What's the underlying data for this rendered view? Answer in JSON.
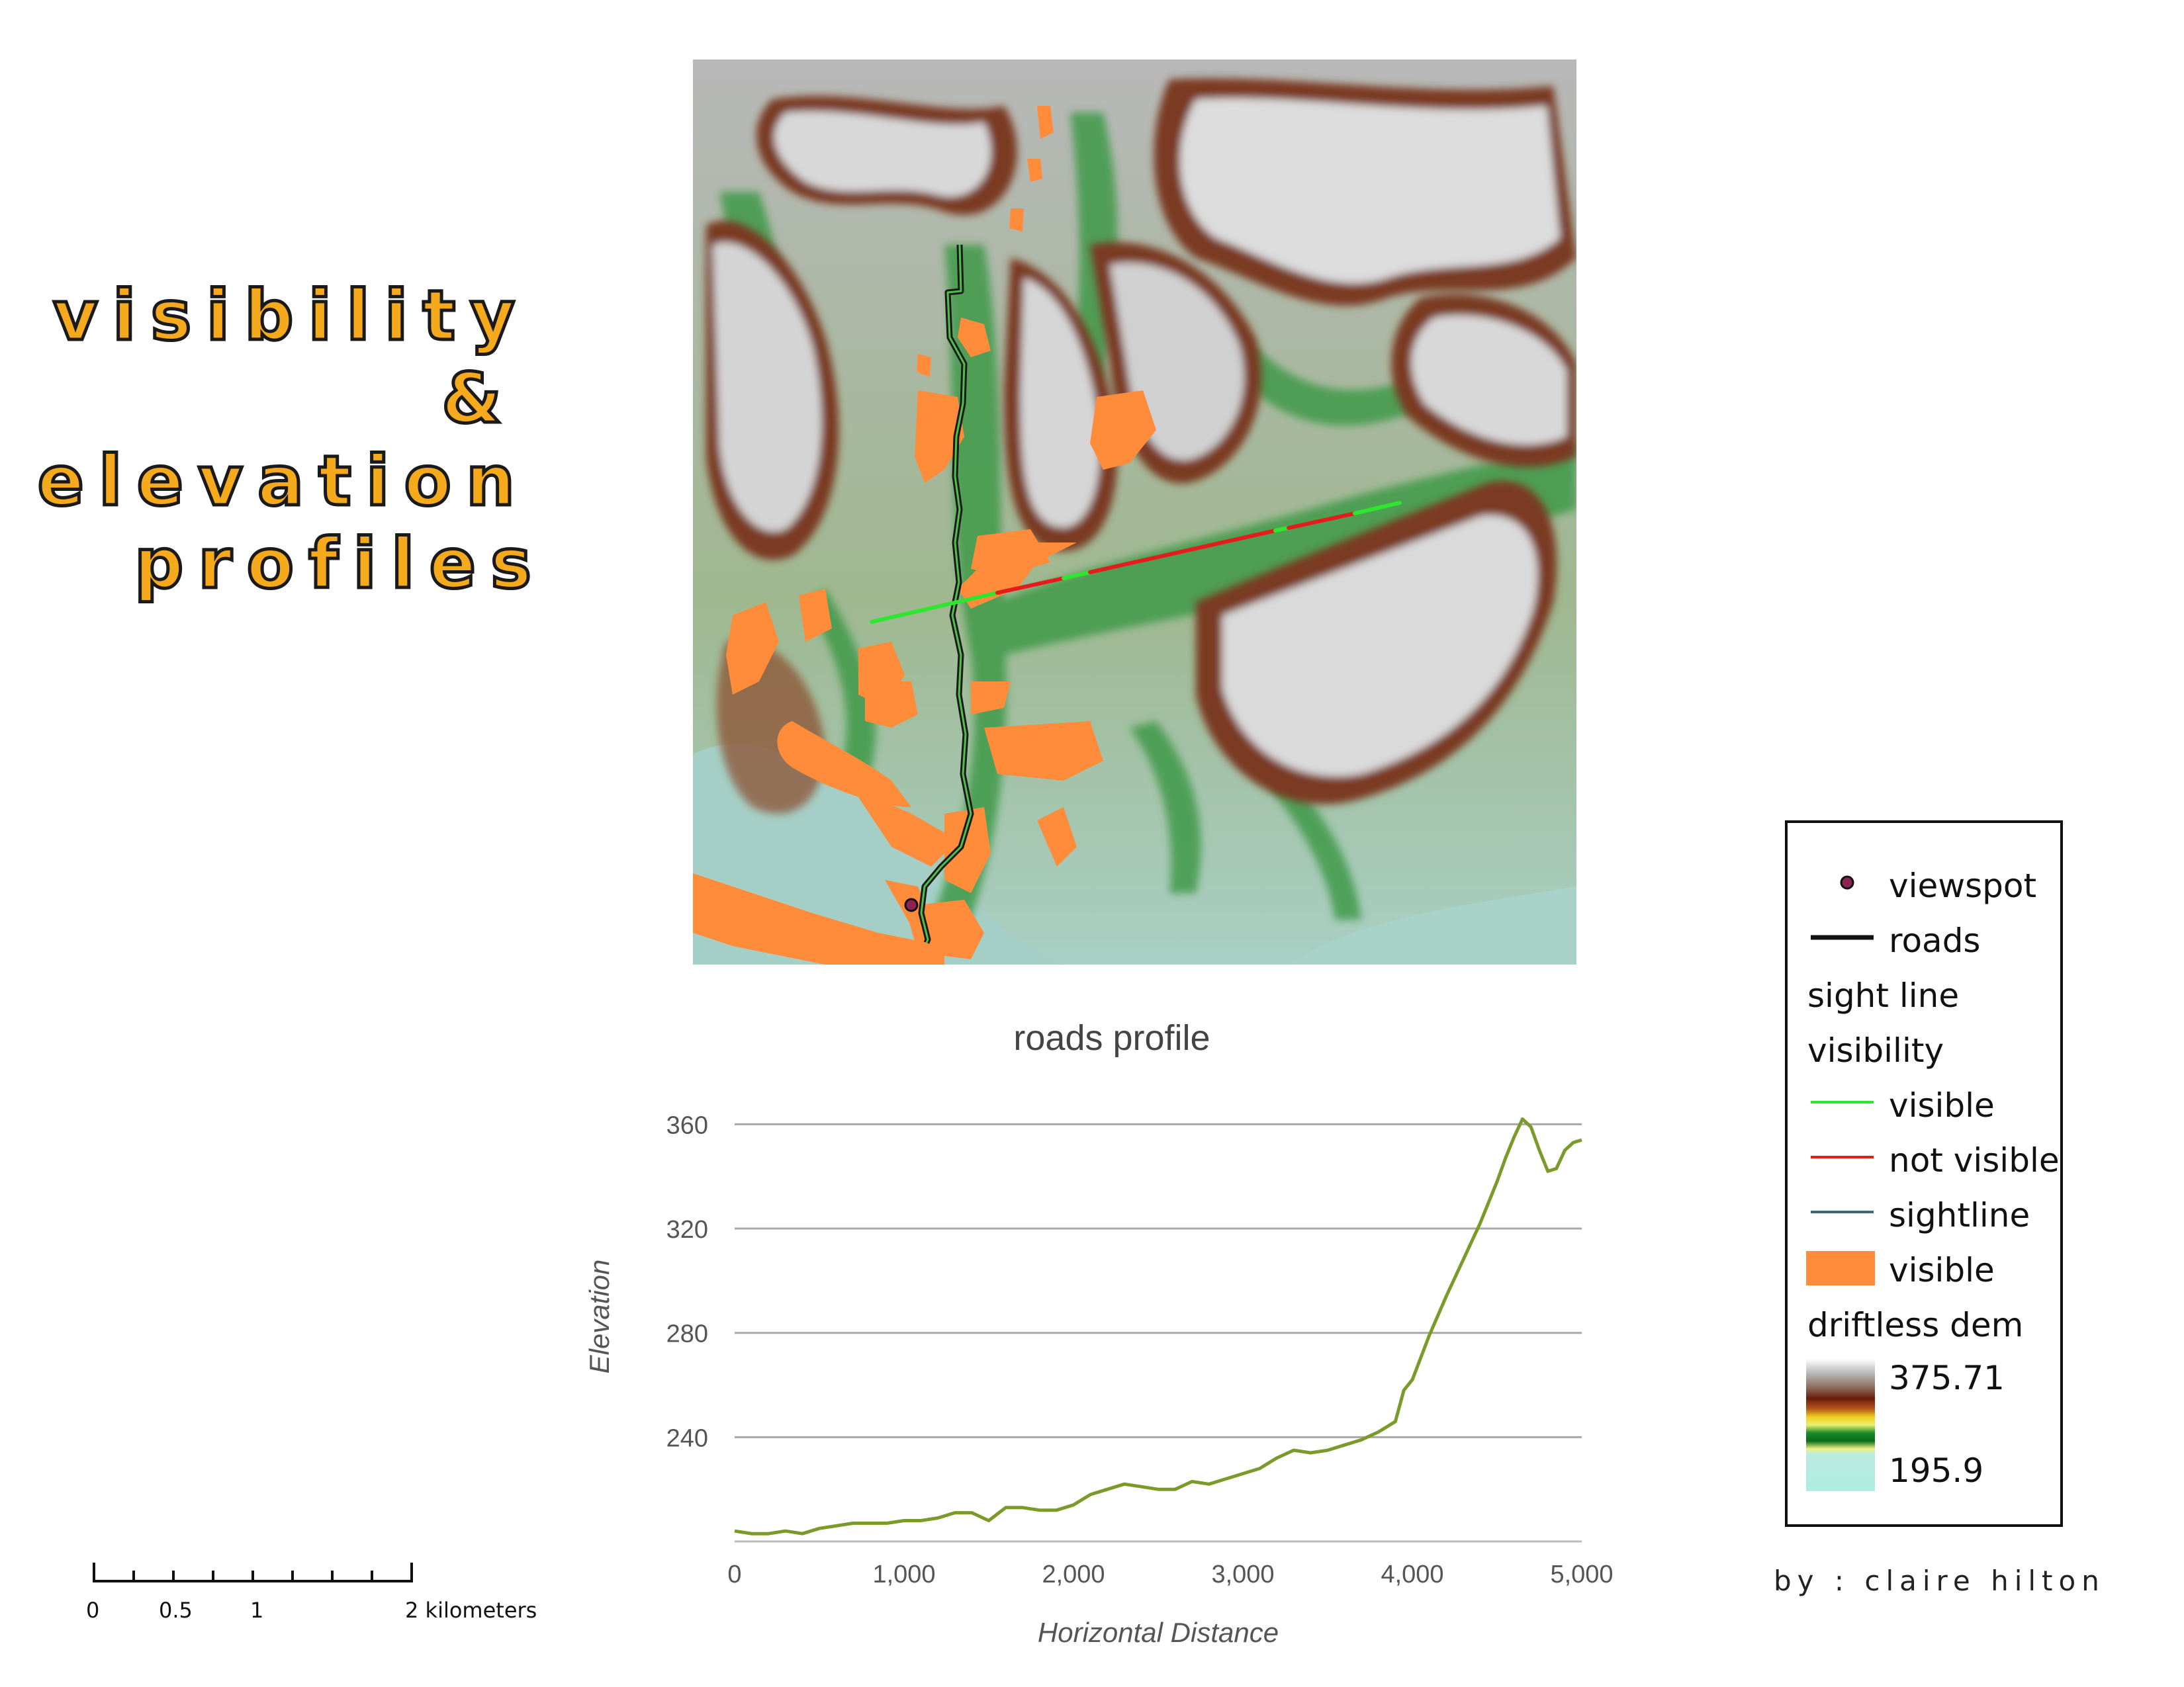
{
  "title": {
    "line1": "visibility",
    "line2": "&",
    "line3": "elevation",
    "line4": "profiles"
  },
  "colors": {
    "title_fill": "#f5a91d",
    "visible_area": "#ff8c3a",
    "sight_visible": "#2ee62e",
    "sight_not_visible": "#e51c1c",
    "sightline": "#3d6a7a",
    "road": "#1a1a1a",
    "viewspot": "#8c2452",
    "profile_line": "#7a9a2a"
  },
  "map": {
    "icon": "terrain-map-icon"
  },
  "chart_data": {
    "type": "line",
    "title": "roads profile",
    "xlabel": "Horizontal Distance",
    "ylabel": "Elevation",
    "xlim": [
      0,
      5000
    ],
    "ylim": [
      200,
      370
    ],
    "xticks": [
      0,
      1000,
      2000,
      3000,
      4000,
      5000
    ],
    "xtick_labels": [
      "0",
      "1,000",
      "2,000",
      "3,000",
      "4,000",
      "5,000"
    ],
    "yticks": [
      240,
      280,
      320,
      360
    ],
    "ytick_labels": [
      "240",
      "280",
      "320",
      "360"
    ],
    "grid": "horizontal",
    "series": [
      {
        "x": [
          0,
          100,
          200,
          300,
          400,
          500,
          600,
          700,
          800,
          900,
          1000,
          1100,
          1200,
          1300,
          1400,
          1500,
          1600,
          1700,
          1800,
          1900,
          2000,
          2100,
          2200,
          2300,
          2400,
          2500,
          2600,
          2700,
          2800,
          2900,
          3000,
          3100,
          3200,
          3300,
          3400,
          3500,
          3600,
          3700,
          3800,
          3900,
          3950,
          4000,
          4100,
          4200,
          4300,
          4400,
          4500,
          4550,
          4600,
          4650,
          4700,
          4750,
          4800,
          4850,
          4900,
          4950,
          5000
        ],
        "y": [
          204,
          203,
          203,
          204,
          203,
          205,
          206,
          207,
          207,
          207,
          208,
          208,
          209,
          211,
          211,
          208,
          213,
          213,
          212,
          212,
          214,
          218,
          220,
          222,
          221,
          220,
          220,
          223,
          222,
          224,
          226,
          228,
          232,
          235,
          234,
          235,
          237,
          239,
          242,
          246,
          258,
          262,
          279,
          294,
          308,
          322,
          338,
          347,
          355,
          362,
          359,
          350,
          342,
          343,
          350,
          353,
          354
        ]
      }
    ]
  },
  "legend": {
    "viewspot": "viewspot",
    "roads": "roads",
    "sight_line_header": "sight line",
    "visibility_header": "visibility",
    "visible": "visible",
    "not_visible": "not visible",
    "sightline": "sightline",
    "visible_area": "visible",
    "dem_header": "driftless dem",
    "dem_max": "375.71",
    "dem_min": "195.9"
  },
  "credit": "by : claire hilton",
  "scale": {
    "labels": [
      "0",
      "0.5",
      "1",
      "2 kilometers"
    ]
  }
}
